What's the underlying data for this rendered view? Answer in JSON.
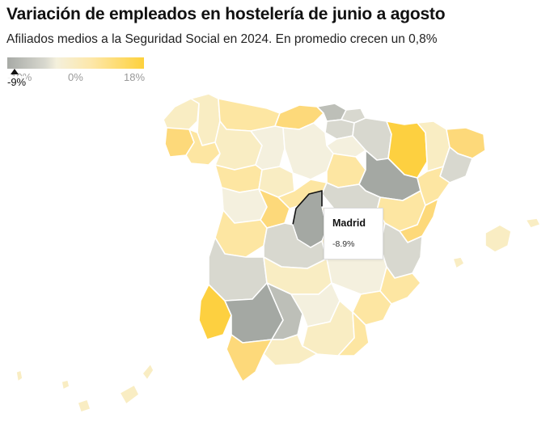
{
  "header": {
    "title": "Variación de empleados en hostelería de junio a agosto",
    "subtitle": "Afiliados medios a la Seguridad Social en 2024. En promedio crecen un 0,8%"
  },
  "legend": {
    "ticks": [
      "-10%",
      "0%",
      "18%"
    ],
    "marker_label": "-9%",
    "marker_value": -9,
    "range": [
      -10,
      18
    ],
    "colors": {
      "low": "#a7aaa6",
      "neutral": "#f4f0dc",
      "high": "#fdd13c"
    }
  },
  "tooltip": {
    "province": "Madrid",
    "value": "-8.9%"
  },
  "colors": {
    "grey_dark": "#a4a8a3",
    "grey_mid": "#bdbfb8",
    "grey_light": "#d8d8cf",
    "neutral": "#f4f0de",
    "cream": "#f9edc3",
    "yellow_light": "#fde6a2",
    "yellow_mid": "#fdd97a",
    "yellow_strong": "#fdd040",
    "border": "#ffffff",
    "highlight_stroke": "#111111"
  }
}
